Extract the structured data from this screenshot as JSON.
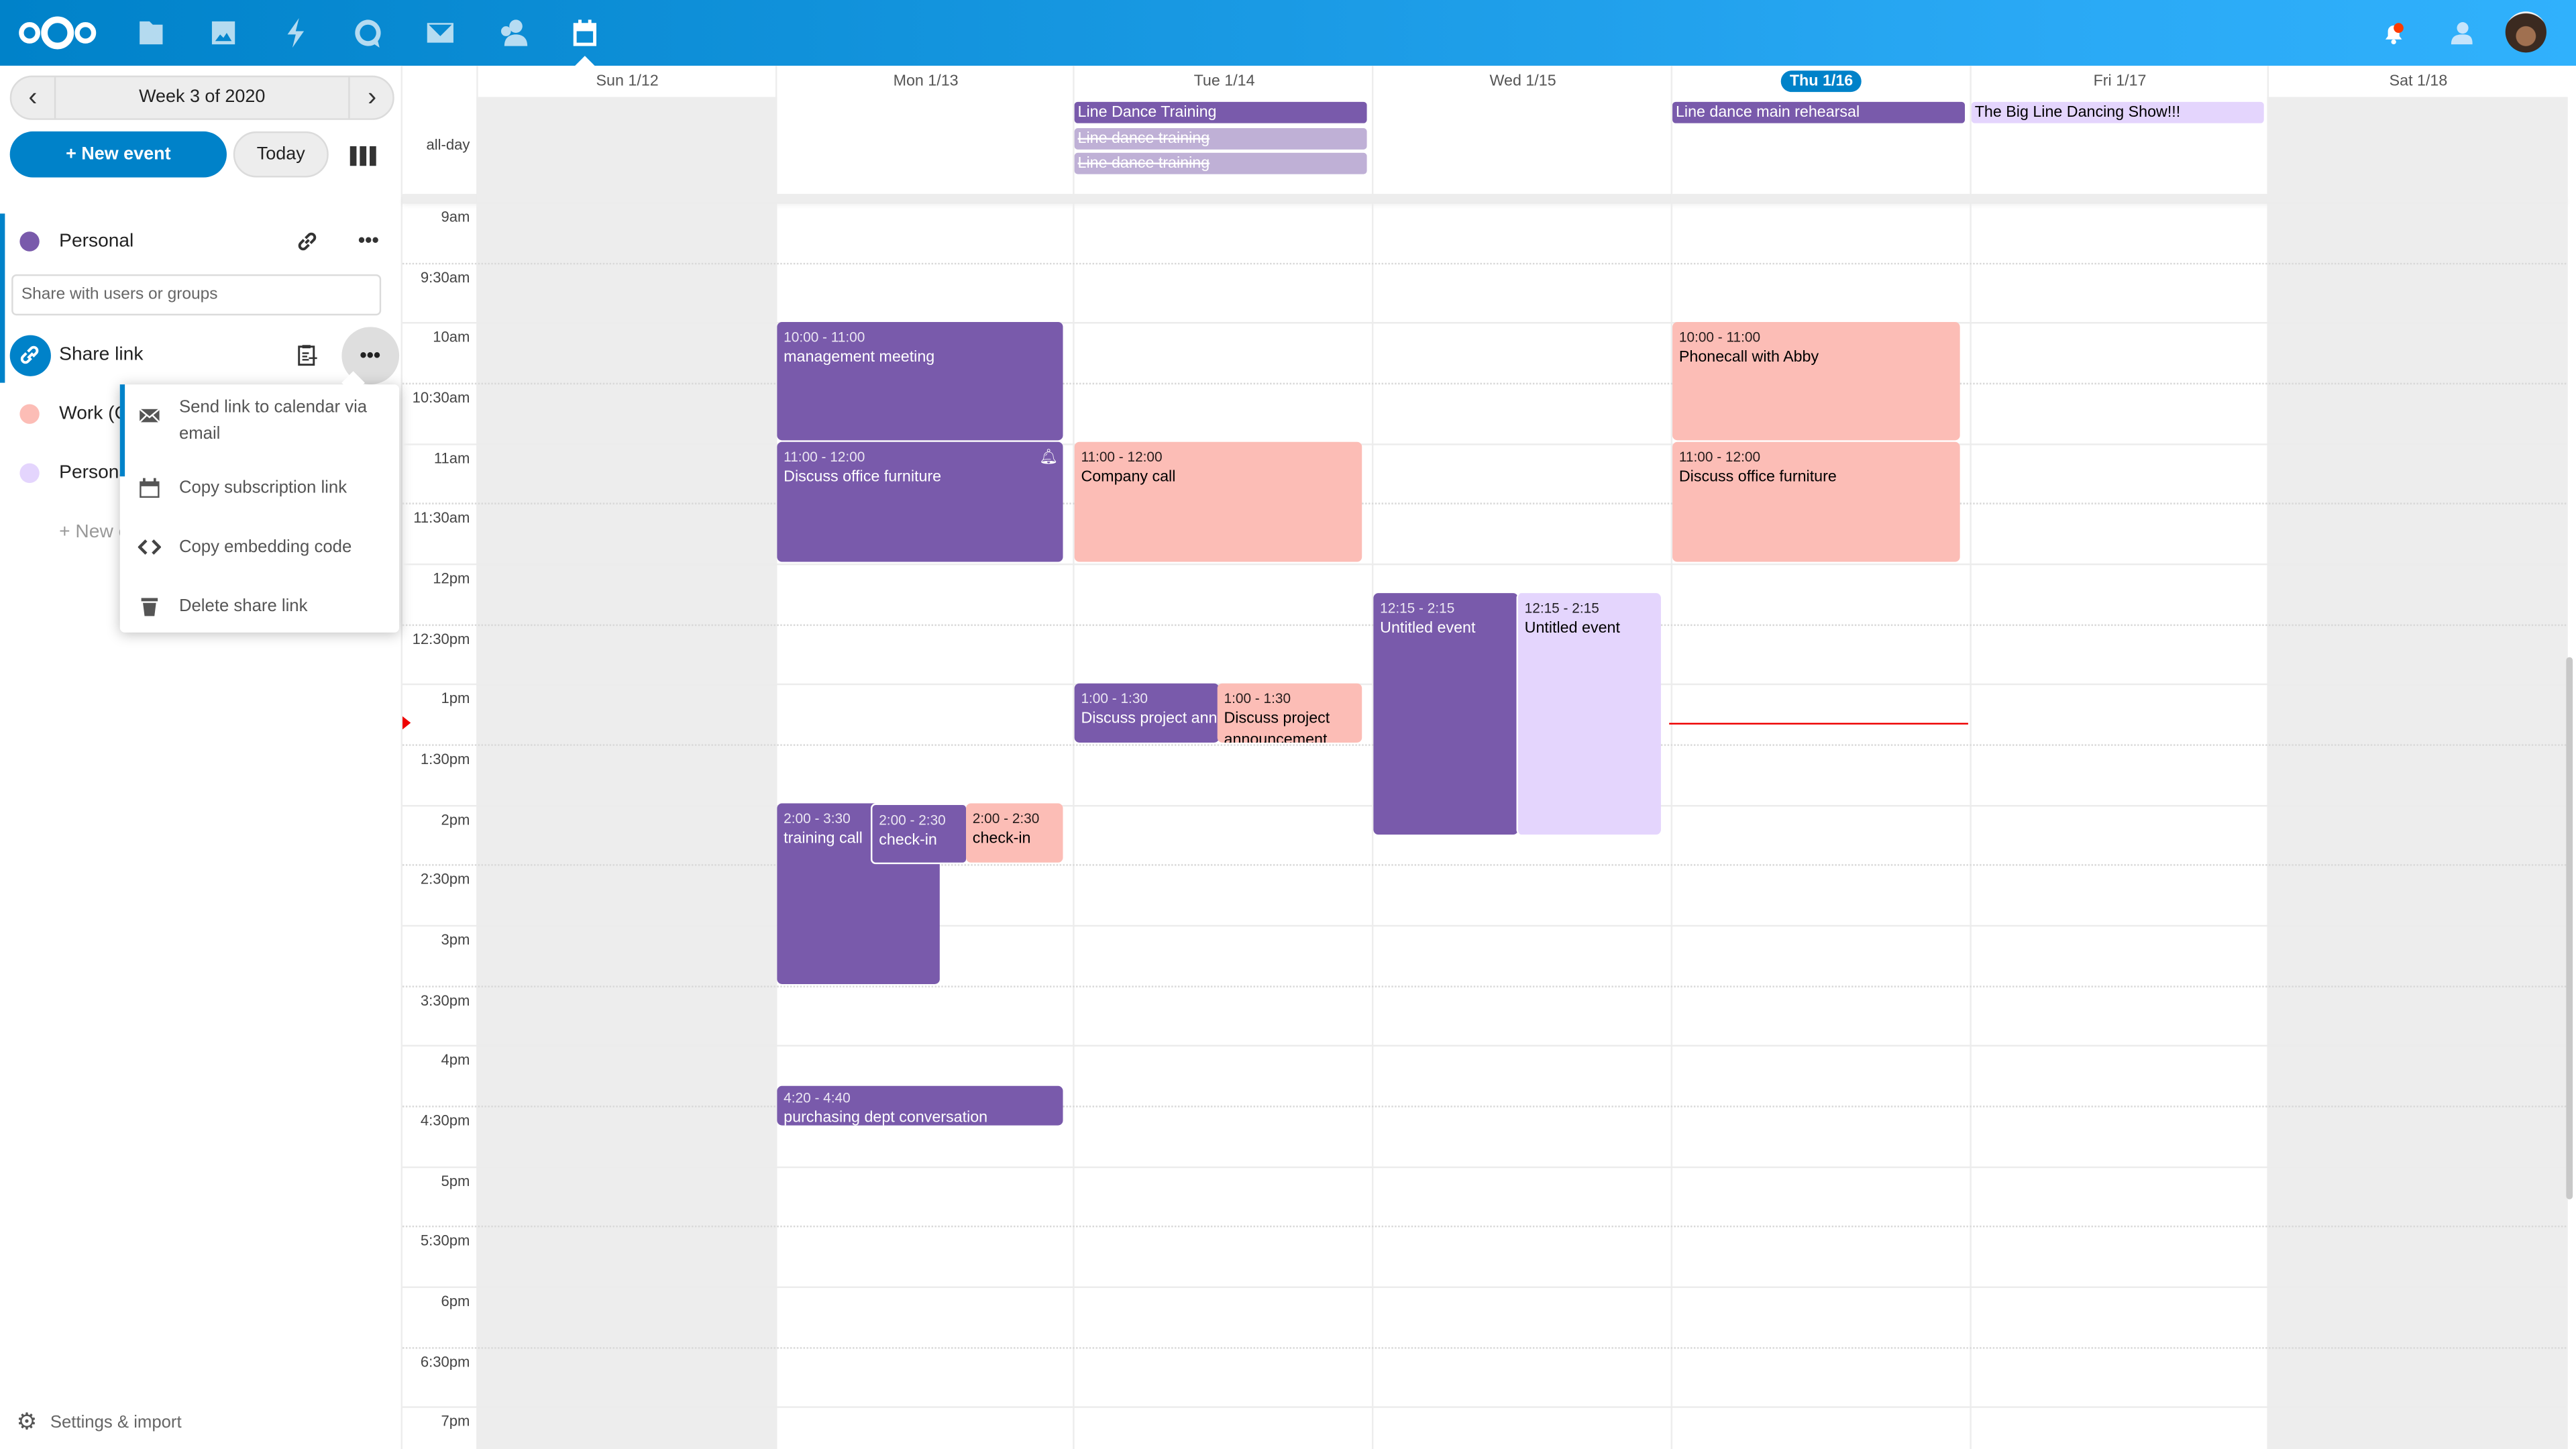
{
  "header": {
    "apps": [
      {
        "name": "files",
        "icon": "folder-icon"
      },
      {
        "name": "photos",
        "icon": "image-icon"
      },
      {
        "name": "activity",
        "icon": "lightning-icon"
      },
      {
        "name": "talk",
        "icon": "chat-icon"
      },
      {
        "name": "mail",
        "icon": "mail-icon"
      },
      {
        "name": "contacts",
        "icon": "contacts-icon"
      },
      {
        "name": "calendar",
        "icon": "calendar-icon",
        "active": true
      }
    ],
    "notification_badge_color": "#ff3b00",
    "brand_color": "#0082c9"
  },
  "sidebar": {
    "week_label": "Week 3 of 2020",
    "new_event": "+ New event",
    "today": "Today",
    "calendars": [
      {
        "name": "Personal",
        "color": "#795aab"
      },
      {
        "name": "Work (C",
        "color": "#fcbdb6"
      },
      {
        "name": "Persona",
        "color": "#e4d5fd"
      }
    ],
    "share_placeholder": "Share with users or groups",
    "share_link": "Share link",
    "new_calendar": "+ New c",
    "settings": "Settings & import",
    "menu": [
      {
        "label": "Send link to calendar via email",
        "icon": "mail-icon"
      },
      {
        "label": "Copy subscription link",
        "icon": "calendar-icon"
      },
      {
        "label": "Copy embedding code",
        "icon": "code-icon"
      },
      {
        "label": "Delete share link",
        "icon": "trash-icon"
      }
    ]
  },
  "calendar": {
    "all_day_label": "all-day",
    "days": [
      "Sun 1/12",
      "Mon 1/13",
      "Tue 1/14",
      "Wed 1/15",
      "Thu 1/16",
      "Fri 1/17",
      "Sat 1/18"
    ],
    "today_index": 4,
    "current_time": "1:20pm",
    "time_labels": [
      "9am",
      "9:30am",
      "10am",
      "10:30am",
      "11am",
      "11:30am",
      "12pm",
      "12:30pm",
      "1pm",
      "1:30pm",
      "2pm",
      "2:30pm",
      "3pm",
      "3:30pm",
      "4pm",
      "4:30pm",
      "5pm",
      "5:30pm",
      "6pm",
      "6:30pm",
      "7pm"
    ],
    "all_day_events": [
      {
        "day": "Tue 1/14",
        "title": "Line Dance Training"
      },
      {
        "day": "Tue 1/14",
        "title": "Line dance training",
        "cancelled": true
      },
      {
        "day": "Tue 1/14",
        "title": "Line dance training",
        "cancelled": true
      },
      {
        "day": "Thu 1/16",
        "title": "Line dance main rehearsal"
      },
      {
        "day": "Fri 1/17",
        "title": "The Big Line Dancing Show!!!"
      }
    ],
    "events": [
      {
        "day": "Mon 1/13",
        "time": "10:00 - 11:00",
        "title": "management meeting"
      },
      {
        "day": "Mon 1/13",
        "time": "11:00 - 12:00",
        "title": "Discuss office furniture",
        "reminder": true
      },
      {
        "day": "Mon 1/13",
        "time": "2:00 - 3:30",
        "title": "training call"
      },
      {
        "day": "Mon 1/13",
        "time": "2:00 - 2:30",
        "title": "check-in"
      },
      {
        "day": "Mon 1/13",
        "time": "2:00 - 2:30",
        "title": "check-in"
      },
      {
        "day": "Mon 1/13",
        "time": "4:20 - 4:40",
        "title": "purchasing dept conversation"
      },
      {
        "day": "Tue 1/14",
        "time": "11:00 - 12:00",
        "title": "Company call"
      },
      {
        "day": "Tue 1/14",
        "time": "1:00 - 1:30",
        "title": "Discuss project announcement"
      },
      {
        "day": "Tue 1/14",
        "time": "1:00 - 1:30",
        "title": "Discuss project announcement"
      },
      {
        "day": "Wed 1/15",
        "time": "12:15 - 2:15",
        "title": "Untitled event"
      },
      {
        "day": "Wed 1/15",
        "time": "12:15 - 2:15",
        "title": "Untitled event"
      },
      {
        "day": "Thu 1/16",
        "time": "10:00 - 11:00",
        "title": "Phonecall with Abby"
      },
      {
        "day": "Thu 1/16",
        "time": "11:00 - 12:00",
        "title": "Discuss office furniture"
      }
    ]
  }
}
